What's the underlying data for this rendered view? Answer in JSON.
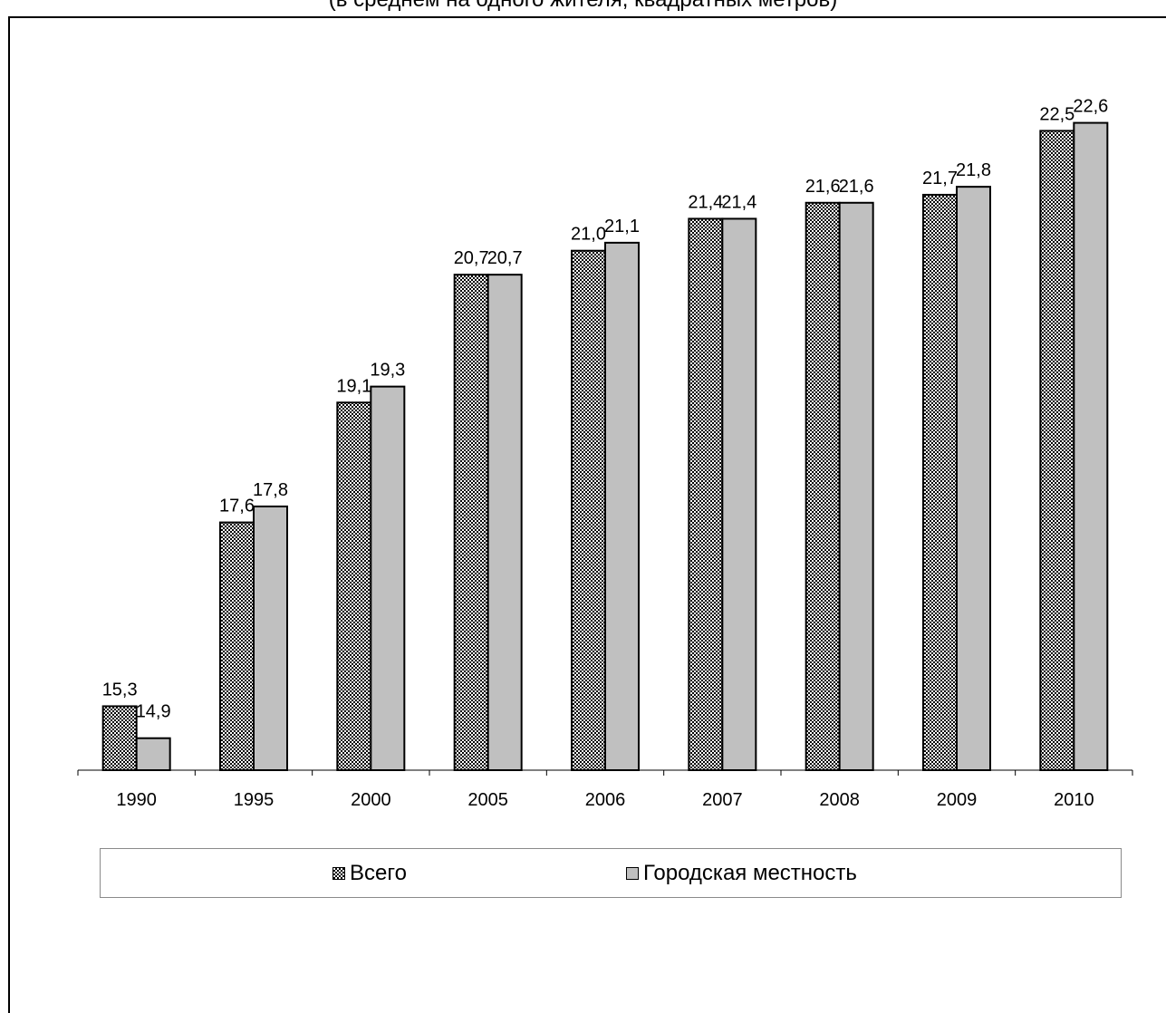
{
  "subtitle": "(в среднем на одного жителя, квадратных метров)",
  "chart_data": {
    "type": "bar",
    "categories": [
      "1990",
      "1995",
      "2000",
      "2005",
      "2006",
      "2007",
      "2008",
      "2009",
      "2010"
    ],
    "series": [
      {
        "name": "Всего",
        "values": [
          15.3,
          17.6,
          19.1,
          20.7,
          21.0,
          21.4,
          21.6,
          21.7,
          22.5
        ],
        "labels": [
          "15,3",
          "17,6",
          "19,1",
          "20,7",
          "21,0",
          "21,4",
          "21,6",
          "21,7",
          "22,5"
        ],
        "fill": "checkered"
      },
      {
        "name": "Городская местность",
        "values": [
          14.9,
          17.8,
          19.3,
          20.7,
          21.1,
          21.4,
          21.6,
          21.8,
          22.6
        ],
        "labels": [
          "14,9",
          "17,8",
          "19,3",
          "20,7",
          "21,1",
          "21,4",
          "21,6",
          "21,8",
          "22,6"
        ],
        "fill": "#c0c0c0"
      }
    ],
    "ylim": [
      14.5,
      22.9
    ],
    "legend_position": "bottom",
    "grid": false
  }
}
